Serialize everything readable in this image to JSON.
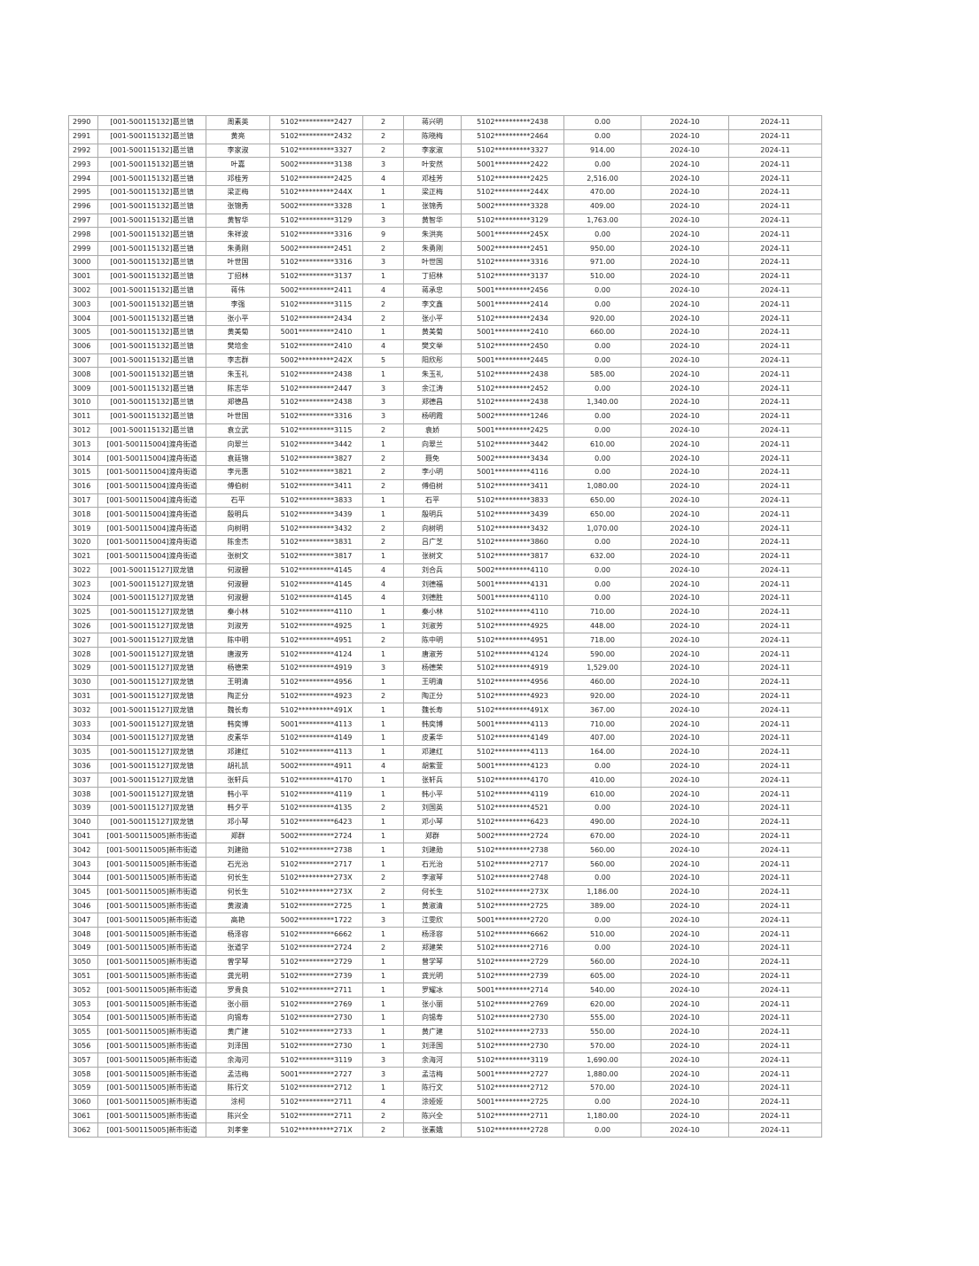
{
  "table": {
    "rows": [
      [
        "2990",
        "[001-500115132]葛兰镇",
        "周素英",
        "5102**********2427",
        "2",
        "蒋兴明",
        "5102**********2438",
        "0.00",
        "2024-10",
        "2024-11"
      ],
      [
        "2991",
        "[001-500115132]葛兰镇",
        "黄亮",
        "5102**********2432",
        "2",
        "陈晓梅",
        "5102**********2464",
        "0.00",
        "2024-10",
        "2024-11"
      ],
      [
        "2992",
        "[001-500115132]葛兰镇",
        "李家淑",
        "5102**********3327",
        "2",
        "李家淑",
        "5102**********3327",
        "914.00",
        "2024-10",
        "2024-11"
      ],
      [
        "2993",
        "[001-500115132]葛兰镇",
        "叶嘉",
        "5002**********3138",
        "3",
        "叶安然",
        "5001**********2422",
        "0.00",
        "2024-10",
        "2024-11"
      ],
      [
        "2994",
        "[001-500115132]葛兰镇",
        "邓桂芳",
        "5102**********2425",
        "4",
        "邓桂芳",
        "5102**********2425",
        "2,516.00",
        "2024-10",
        "2024-11"
      ],
      [
        "2995",
        "[001-500115132]葛兰镇",
        "梁正梅",
        "5102**********244X",
        "1",
        "梁正梅",
        "5102**********244X",
        "470.00",
        "2024-10",
        "2024-11"
      ],
      [
        "2996",
        "[001-500115132]葛兰镇",
        "张锦秀",
        "5002**********3328",
        "1",
        "张锦秀",
        "5002**********3328",
        "409.00",
        "2024-10",
        "2024-11"
      ],
      [
        "2997",
        "[001-500115132]葛兰镇",
        "黄智华",
        "5102**********3129",
        "3",
        "黄智华",
        "5102**********3129",
        "1,763.00",
        "2024-10",
        "2024-11"
      ],
      [
        "2998",
        "[001-500115132]葛兰镇",
        "朱祥波",
        "5102**********3316",
        "9",
        "朱洪亮",
        "5001**********245X",
        "0.00",
        "2024-10",
        "2024-11"
      ],
      [
        "2999",
        "[001-500115132]葛兰镇",
        "朱勇刚",
        "5002**********2451",
        "2",
        "朱勇刚",
        "5002**********2451",
        "950.00",
        "2024-10",
        "2024-11"
      ],
      [
        "3000",
        "[001-500115132]葛兰镇",
        "叶世国",
        "5102**********3316",
        "3",
        "叶世国",
        "5102**********3316",
        "971.00",
        "2024-10",
        "2024-11"
      ],
      [
        "3001",
        "[001-500115132]葛兰镇",
        "丁招林",
        "5102**********3137",
        "1",
        "丁招林",
        "5102**********3137",
        "510.00",
        "2024-10",
        "2024-11"
      ],
      [
        "3002",
        "[001-500115132]葛兰镇",
        "蒋伟",
        "5002**********2411",
        "4",
        "蒋承忠",
        "5001**********2456",
        "0.00",
        "2024-10",
        "2024-11"
      ],
      [
        "3003",
        "[001-500115132]葛兰镇",
        "李强",
        "5102**********3115",
        "2",
        "李文鑫",
        "5001**********2414",
        "0.00",
        "2024-10",
        "2024-11"
      ],
      [
        "3004",
        "[001-500115132]葛兰镇",
        "张小平",
        "5102**********2434",
        "2",
        "张小平",
        "5102**********2434",
        "920.00",
        "2024-10",
        "2024-11"
      ],
      [
        "3005",
        "[001-500115132]葛兰镇",
        "黄美菊",
        "5001**********2410",
        "1",
        "黄美菊",
        "5001**********2410",
        "660.00",
        "2024-10",
        "2024-11"
      ],
      [
        "3006",
        "[001-500115132]葛兰镇",
        "樊培金",
        "5102**********2410",
        "4",
        "樊文举",
        "5102**********2450",
        "0.00",
        "2024-10",
        "2024-11"
      ],
      [
        "3007",
        "[001-500115132]葛兰镇",
        "李志群",
        "5002**********242X",
        "5",
        "阳欣彤",
        "5001**********2445",
        "0.00",
        "2024-10",
        "2024-11"
      ],
      [
        "3008",
        "[001-500115132]葛兰镇",
        "朱玉礼",
        "5102**********2438",
        "1",
        "朱玉礼",
        "5102**********2438",
        "585.00",
        "2024-10",
        "2024-11"
      ],
      [
        "3009",
        "[001-500115132]葛兰镇",
        "陈志华",
        "5102**********2447",
        "3",
        "余江涛",
        "5102**********2452",
        "0.00",
        "2024-10",
        "2024-11"
      ],
      [
        "3010",
        "[001-500115132]葛兰镇",
        "郑德昌",
        "5102**********2438",
        "3",
        "郑德昌",
        "5102**********2438",
        "1,340.00",
        "2024-10",
        "2024-11"
      ],
      [
        "3011",
        "[001-500115132]葛兰镇",
        "叶世国",
        "5102**********3316",
        "3",
        "杨明霞",
        "5002**********1246",
        "0.00",
        "2024-10",
        "2024-11"
      ],
      [
        "3012",
        "[001-500115132]葛兰镇",
        "袁立武",
        "5102**********3115",
        "2",
        "袁娇",
        "5001**********2425",
        "0.00",
        "2024-10",
        "2024-11"
      ],
      [
        "3013",
        "[001-500115004]渡舟街道",
        "向翠兰",
        "5102**********3442",
        "1",
        "向翠兰",
        "5102**********3442",
        "610.00",
        "2024-10",
        "2024-11"
      ],
      [
        "3014",
        "[001-500115004]渡舟街道",
        "袁廷锦",
        "5102**********3827",
        "2",
        "聂免",
        "5002**********3434",
        "0.00",
        "2024-10",
        "2024-11"
      ],
      [
        "3015",
        "[001-500115004]渡舟街道",
        "李元惠",
        "5102**********3821",
        "2",
        "李小明",
        "5001**********4116",
        "0.00",
        "2024-10",
        "2024-11"
      ],
      [
        "3016",
        "[001-500115004]渡舟街道",
        "傅伯树",
        "5102**********3411",
        "2",
        "傅伯树",
        "5102**********3411",
        "1,080.00",
        "2024-10",
        "2024-11"
      ],
      [
        "3017",
        "[001-500115004]渡舟街道",
        "石平",
        "5102**********3833",
        "1",
        "石平",
        "5102**********3833",
        "650.00",
        "2024-10",
        "2024-11"
      ],
      [
        "3018",
        "[001-500115004]渡舟街道",
        "殷明兵",
        "5102**********3439",
        "1",
        "殷明兵",
        "5102**********3439",
        "650.00",
        "2024-10",
        "2024-11"
      ],
      [
        "3019",
        "[001-500115004]渡舟街道",
        "向树明",
        "5102**********3432",
        "2",
        "向树明",
        "5102**********3432",
        "1,070.00",
        "2024-10",
        "2024-11"
      ],
      [
        "3020",
        "[001-500115004]渡舟街道",
        "陈金杰",
        "5102**********3831",
        "2",
        "吕广芝",
        "5102**********3860",
        "0.00",
        "2024-10",
        "2024-11"
      ],
      [
        "3021",
        "[001-500115004]渡舟街道",
        "张树文",
        "5102**********3817",
        "1",
        "张树文",
        "5102**********3817",
        "632.00",
        "2024-10",
        "2024-11"
      ],
      [
        "3022",
        "[001-500115127]双龙镇",
        "何淑碧",
        "5102**********4145",
        "4",
        "刘合兵",
        "5002**********4110",
        "0.00",
        "2024-10",
        "2024-11"
      ],
      [
        "3023",
        "[001-500115127]双龙镇",
        "何淑碧",
        "5102**********4145",
        "4",
        "刘德福",
        "5001**********4131",
        "0.00",
        "2024-10",
        "2024-11"
      ],
      [
        "3024",
        "[001-500115127]双龙镇",
        "何淑碧",
        "5102**********4145",
        "4",
        "刘德胜",
        "5001**********4110",
        "0.00",
        "2024-10",
        "2024-11"
      ],
      [
        "3025",
        "[001-500115127]双龙镇",
        "秦小林",
        "5102**********4110",
        "1",
        "秦小林",
        "5102**********4110",
        "710.00",
        "2024-10",
        "2024-11"
      ],
      [
        "3026",
        "[001-500115127]双龙镇",
        "刘淑芳",
        "5102**********4925",
        "1",
        "刘淑芳",
        "5102**********4925",
        "448.00",
        "2024-10",
        "2024-11"
      ],
      [
        "3027",
        "[001-500115127]双龙镇",
        "陈中明",
        "5102**********4951",
        "2",
        "陈中明",
        "5102**********4951",
        "718.00",
        "2024-10",
        "2024-11"
      ],
      [
        "3028",
        "[001-500115127]双龙镇",
        "唐淑芳",
        "5102**********4124",
        "1",
        "唐淑芳",
        "5102**********4124",
        "590.00",
        "2024-10",
        "2024-11"
      ],
      [
        "3029",
        "[001-500115127]双龙镇",
        "杨德荣",
        "5102**********4919",
        "3",
        "杨德荣",
        "5102**********4919",
        "1,529.00",
        "2024-10",
        "2024-11"
      ],
      [
        "3030",
        "[001-500115127]双龙镇",
        "王明清",
        "5102**********4956",
        "1",
        "王明清",
        "5102**********4956",
        "460.00",
        "2024-10",
        "2024-11"
      ],
      [
        "3031",
        "[001-500115127]双龙镇",
        "陶正分",
        "5102**********4923",
        "2",
        "陶正分",
        "5102**********4923",
        "920.00",
        "2024-10",
        "2024-11"
      ],
      [
        "3032",
        "[001-500115127]双龙镇",
        "魏长寿",
        "5102**********491X",
        "1",
        "魏长寿",
        "5102**********491X",
        "367.00",
        "2024-10",
        "2024-11"
      ],
      [
        "3033",
        "[001-500115127]双龙镇",
        "韩奕博",
        "5001**********4113",
        "1",
        "韩奕博",
        "5001**********4113",
        "710.00",
        "2024-10",
        "2024-11"
      ],
      [
        "3034",
        "[001-500115127]双龙镇",
        "皮素华",
        "5102**********4149",
        "1",
        "皮素华",
        "5102**********4149",
        "407.00",
        "2024-10",
        "2024-11"
      ],
      [
        "3035",
        "[001-500115127]双龙镇",
        "邓建红",
        "5102**********4113",
        "1",
        "邓建红",
        "5102**********4113",
        "164.00",
        "2024-10",
        "2024-11"
      ],
      [
        "3036",
        "[001-500115127]双龙镇",
        "胡礼凯",
        "5002**********4911",
        "4",
        "胡紫萱",
        "5001**********4123",
        "0.00",
        "2024-10",
        "2024-11"
      ],
      [
        "3037",
        "[001-500115127]双龙镇",
        "张轩兵",
        "5102**********4170",
        "1",
        "张轩兵",
        "5102**********4170",
        "410.00",
        "2024-10",
        "2024-11"
      ],
      [
        "3038",
        "[001-500115127]双龙镇",
        "韩小平",
        "5102**********4119",
        "1",
        "韩小平",
        "5102**********4119",
        "610.00",
        "2024-10",
        "2024-11"
      ],
      [
        "3039",
        "[001-500115127]双龙镇",
        "韩夕平",
        "5102**********4135",
        "2",
        "刘国英",
        "5102**********4521",
        "0.00",
        "2024-10",
        "2024-11"
      ],
      [
        "3040",
        "[001-500115127]双龙镇",
        "邓小琴",
        "5102**********6423",
        "1",
        "邓小琴",
        "5102**********6423",
        "490.00",
        "2024-10",
        "2024-11"
      ],
      [
        "3041",
        "[001-500115005]新市街道",
        "郑群",
        "5002**********2724",
        "1",
        "郑群",
        "5002**********2724",
        "670.00",
        "2024-10",
        "2024-11"
      ],
      [
        "3042",
        "[001-500115005]新市街道",
        "刘建勋",
        "5102**********2738",
        "1",
        "刘建勋",
        "5102**********2738",
        "560.00",
        "2024-10",
        "2024-11"
      ],
      [
        "3043",
        "[001-500115005]新市街道",
        "石光治",
        "5102**********2717",
        "1",
        "石光治",
        "5102**********2717",
        "560.00",
        "2024-10",
        "2024-11"
      ],
      [
        "3044",
        "[001-500115005]新市街道",
        "何长生",
        "5102**********273X",
        "2",
        "李淑琴",
        "5102**********2748",
        "0.00",
        "2024-10",
        "2024-11"
      ],
      [
        "3045",
        "[001-500115005]新市街道",
        "何长生",
        "5102**********273X",
        "2",
        "何长生",
        "5102**********273X",
        "1,186.00",
        "2024-10",
        "2024-11"
      ],
      [
        "3046",
        "[001-500115005]新市街道",
        "黄淑清",
        "5102**********2725",
        "1",
        "黄淑清",
        "5102**********2725",
        "389.00",
        "2024-10",
        "2024-11"
      ],
      [
        "3047",
        "[001-500115005]新市街道",
        "高艳",
        "5002**********1722",
        "3",
        "江雯欣",
        "5001**********2720",
        "0.00",
        "2024-10",
        "2024-11"
      ],
      [
        "3048",
        "[001-500115005]新市街道",
        "杨泽容",
        "5102**********6662",
        "1",
        "杨泽容",
        "5102**********6662",
        "510.00",
        "2024-10",
        "2024-11"
      ],
      [
        "3049",
        "[001-500115005]新市街道",
        "张道学",
        "5102**********2724",
        "2",
        "郑建荣",
        "5102**********2716",
        "0.00",
        "2024-10",
        "2024-11"
      ],
      [
        "3050",
        "[001-500115005]新市街道",
        "曾学琴",
        "5102**********2729",
        "1",
        "曾学琴",
        "5102**********2729",
        "560.00",
        "2024-10",
        "2024-11"
      ],
      [
        "3051",
        "[001-500115005]新市街道",
        "龚光明",
        "5102**********2739",
        "1",
        "龚光明",
        "5102**********2739",
        "605.00",
        "2024-10",
        "2024-11"
      ],
      [
        "3052",
        "[001-500115005]新市街道",
        "罗贵良",
        "5102**********2711",
        "1",
        "罗耀冰",
        "5001**********2714",
        "540.00",
        "2024-10",
        "2024-11"
      ],
      [
        "3053",
        "[001-500115005]新市街道",
        "张小丽",
        "5102**********2769",
        "1",
        "张小丽",
        "5102**********2769",
        "620.00",
        "2024-10",
        "2024-11"
      ],
      [
        "3054",
        "[001-500115005]新市街道",
        "向锡寿",
        "5102**********2730",
        "1",
        "向锡寿",
        "5102**********2730",
        "555.00",
        "2024-10",
        "2024-11"
      ],
      [
        "3055",
        "[001-500115005]新市街道",
        "黄广建",
        "5102**********2733",
        "1",
        "黄广建",
        "5102**********2733",
        "550.00",
        "2024-10",
        "2024-11"
      ],
      [
        "3056",
        "[001-500115005]新市街道",
        "刘泽国",
        "5102**********2730",
        "1",
        "刘泽国",
        "5102**********2730",
        "570.00",
        "2024-10",
        "2024-11"
      ],
      [
        "3057",
        "[001-500115005]新市街道",
        "余海河",
        "5102**********3119",
        "3",
        "余海河",
        "5102**********3119",
        "1,690.00",
        "2024-10",
        "2024-11"
      ],
      [
        "3058",
        "[001-500115005]新市街道",
        "孟洁梅",
        "5001**********2727",
        "3",
        "孟洁梅",
        "5001**********2727",
        "1,880.00",
        "2024-10",
        "2024-11"
      ],
      [
        "3059",
        "[001-500115005]新市街道",
        "陈行文",
        "5102**********2712",
        "1",
        "陈行文",
        "5102**********2712",
        "570.00",
        "2024-10",
        "2024-11"
      ],
      [
        "3060",
        "[001-500115005]新市街道",
        "涂柯",
        "5102**********2711",
        "4",
        "涂娅娅",
        "5001**********2725",
        "0.00",
        "2024-10",
        "2024-11"
      ],
      [
        "3061",
        "[001-500115005]新市街道",
        "陈兴全",
        "5102**********2711",
        "2",
        "陈兴全",
        "5102**********2711",
        "1,180.00",
        "2024-10",
        "2024-11"
      ],
      [
        "3062",
        "[001-500115005]新市街道",
        "刘孝奎",
        "5102**********271X",
        "2",
        "张素娥",
        "5102**********2728",
        "0.00",
        "2024-10",
        "2024-11"
      ]
    ]
  }
}
